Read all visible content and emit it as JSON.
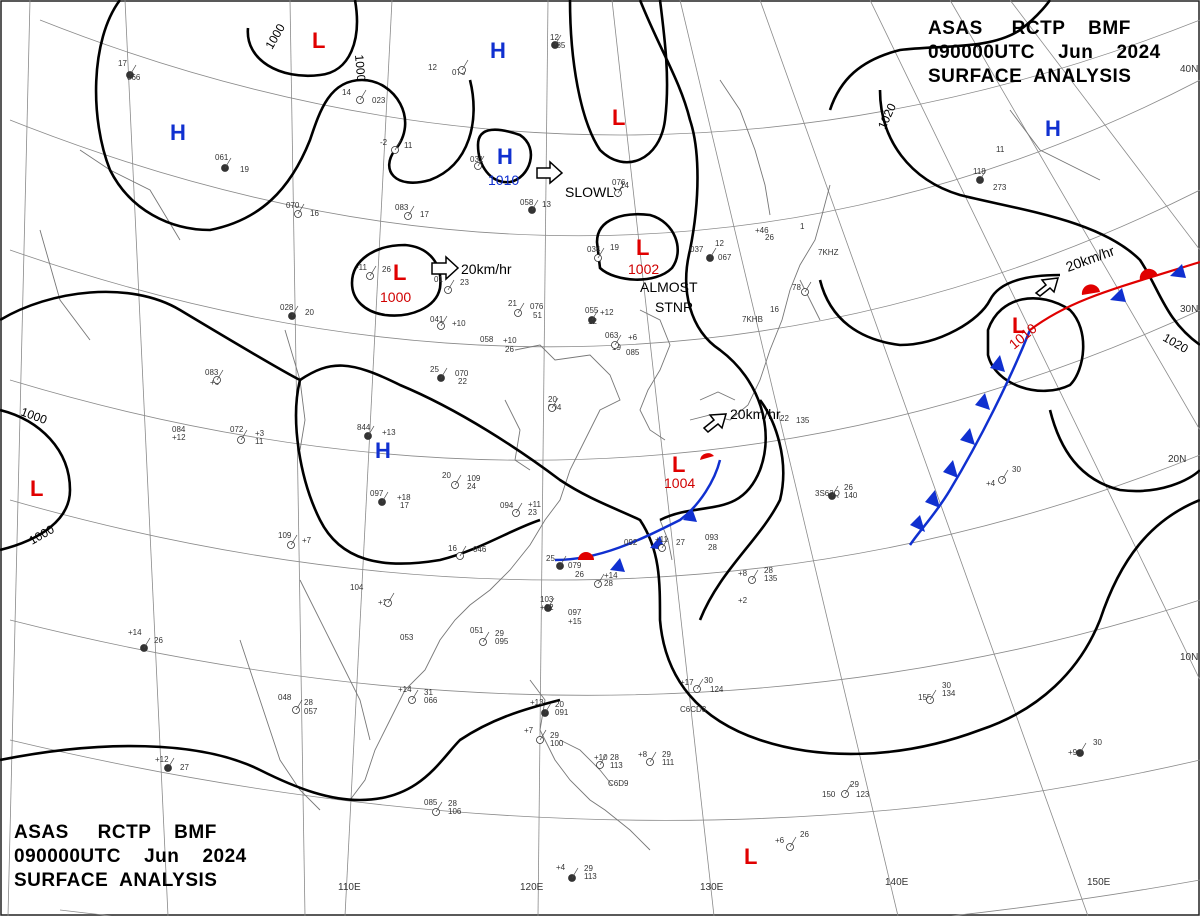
{
  "header_top": {
    "line1": "ASAS     RCTP    BMF",
    "line2": "090000UTC    Jun    2024",
    "line3": "SURFACE  ANALYSIS"
  },
  "header_bottom": {
    "line1": "ASAS     RCTP    BMF",
    "line2": "090000UTC    Jun    2024",
    "line3": "SURFACE  ANALYSIS"
  },
  "longitude_labels": [
    "110E",
    "120E",
    "130E",
    "140E",
    "150E"
  ],
  "latitude_labels": [
    "40N",
    "30N",
    "20N",
    "10N"
  ],
  "isobar_labels": [
    "1000",
    "1000",
    "1000",
    "1000",
    "1020",
    "1020"
  ],
  "pressure_centers": [
    {
      "type": "L",
      "value": "1000"
    },
    {
      "type": "L",
      "value": "1002"
    },
    {
      "type": "L",
      "value": "1004"
    },
    {
      "type": "L",
      "value": "1010"
    },
    {
      "type": "H",
      "value": "1010"
    }
  ],
  "motion_labels": [
    "SLOWLY",
    "20km/hr",
    "ALMOST",
    "STNR",
    "20km/hr",
    "20km/hr"
  ],
  "station_obs": [
    "17",
    "066",
    "14",
    "023",
    "12",
    "076",
    "12",
    "085",
    "-2",
    "11",
    "031",
    "061",
    "19",
    "070",
    "16",
    "083",
    "17",
    "058",
    "13",
    "076",
    "14",
    "034",
    "19",
    "037",
    "12",
    "067",
    "-11",
    "26",
    "01",
    "23",
    "028",
    "20",
    "041",
    "+10",
    "21",
    "076",
    "51",
    "058",
    "+10",
    "26",
    "055",
    "+12",
    "12",
    "063",
    "+6",
    "19",
    "085",
    "20",
    "094",
    "25",
    "070",
    "22",
    "083",
    "+6",
    "072",
    "+3",
    "11",
    "084",
    "+12",
    "844",
    "+13",
    "20",
    "109",
    "24",
    "094",
    "+11",
    "23",
    "097",
    "+18",
    "17",
    "109",
    "+7",
    "16",
    "046",
    "25",
    "079",
    "26",
    "+14",
    "28",
    "092",
    "+11",
    "27",
    "093",
    "28",
    "103",
    "+12",
    "097",
    "+15",
    "104",
    "+14",
    "053",
    "051",
    "29",
    "095",
    "+14",
    "26",
    "048",
    "28",
    "057",
    "+14",
    "31",
    "066",
    "+12",
    "27",
    "085",
    "28",
    "106",
    "+7",
    "29",
    "100",
    "+13",
    "20",
    "091",
    "+10",
    "28",
    "113",
    "+8",
    "29",
    "111",
    "+4",
    "29",
    "113",
    "+17",
    "30",
    "124",
    "+8",
    "28",
    "135",
    "+2",
    "C6D9",
    "C6CD3",
    "3S63Q",
    "26",
    "140",
    "+4",
    "30",
    "155",
    "30",
    "134",
    "+9",
    "30",
    "150",
    "29",
    "123",
    "+6",
    "26",
    "118",
    "11",
    "273",
    "7KHZ",
    "78",
    "7KHB",
    "16",
    "26",
    "22",
    "135",
    "+46",
    "1",
    "6"
  ],
  "colors": {
    "low_marker": "#e00000",
    "high_marker": "#1030d0",
    "warm_front": "#e00000",
    "cold_front": "#1030d0",
    "isobar": "#000000",
    "grid": "#888888",
    "coastline": "#777777"
  }
}
